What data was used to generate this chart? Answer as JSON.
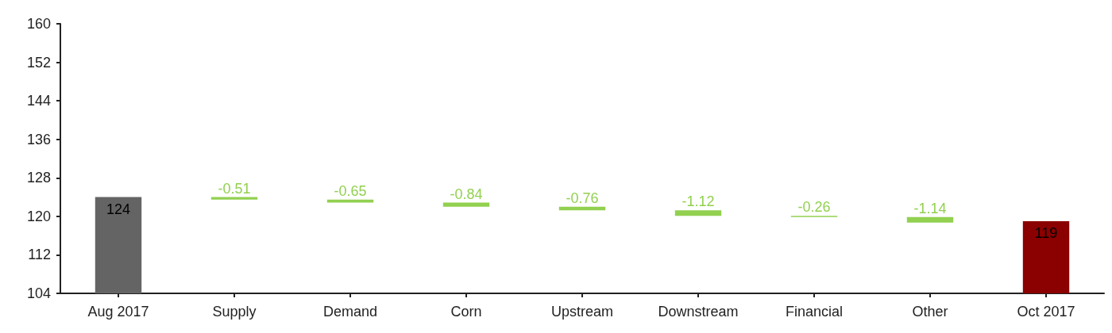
{
  "chart_data": {
    "type": "bar",
    "categories": [
      "Aug 2017",
      "Supply",
      "Demand",
      "Corn",
      "Upstream",
      "Downstream",
      "Financial",
      "Other",
      "Oct 2017"
    ],
    "values": [
      124,
      -0.51,
      -0.65,
      -0.84,
      -0.76,
      -1.12,
      -0.26,
      -1.14,
      119
    ],
    "base": [
      null,
      124,
      123.49,
      122.84,
      122.0,
      121.24,
      120.12,
      119.86,
      null
    ],
    "colors": [
      "#646464",
      "#92d050",
      "#92d050",
      "#92d050",
      "#92d050",
      "#92d050",
      "#92d050",
      "#92d050",
      "#8b0000"
    ],
    "data_labels": true,
    "ylim": [
      104,
      160
    ],
    "yticks": [
      104,
      112,
      120,
      128,
      136,
      144,
      152,
      160
    ],
    "grid": false
  }
}
